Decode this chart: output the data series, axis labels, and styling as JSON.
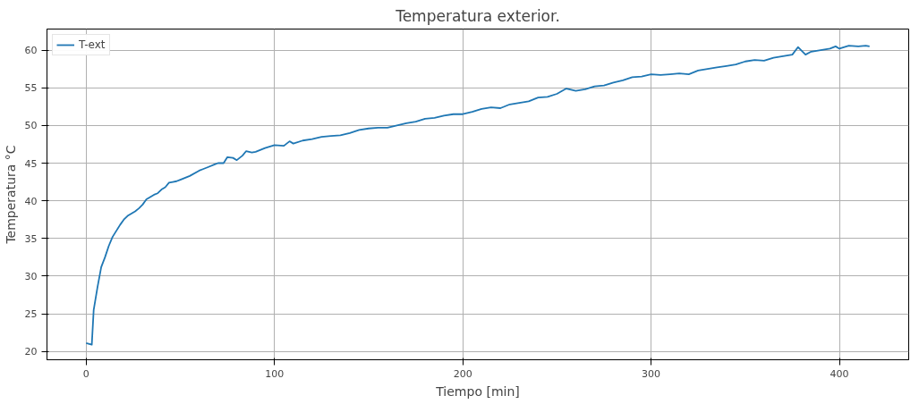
{
  "chart_data": {
    "type": "line",
    "title": "Temperatura exterior.",
    "xlabel": "Tiempo [min]",
    "ylabel": "Temperatura °C",
    "xlim": [
      -20.8,
      436.8
    ],
    "ylim": [
      18.9,
      62.8
    ],
    "xticks": [
      0,
      100,
      200,
      300,
      400
    ],
    "yticks": [
      20,
      25,
      30,
      35,
      40,
      45,
      50,
      55,
      60
    ],
    "grid": true,
    "legend": "top left",
    "series": [
      {
        "name": "T-ext",
        "color": "#1f77b4",
        "x": [
          0,
          3,
          4,
          6,
          8,
          10,
          12,
          14,
          16,
          18,
          20,
          22,
          24,
          26,
          28,
          30,
          32,
          34,
          36,
          38,
          40,
          42,
          44,
          46,
          48,
          50,
          55,
          60,
          62,
          65,
          68,
          70,
          73,
          75,
          78,
          80,
          83,
          85,
          88,
          90,
          95,
          100,
          105,
          108,
          110,
          115,
          120,
          125,
          130,
          135,
          140,
          145,
          150,
          155,
          160,
          165,
          170,
          175,
          180,
          185,
          190,
          195,
          200,
          205,
          210,
          215,
          220,
          225,
          230,
          235,
          240,
          245,
          250,
          255,
          260,
          265,
          270,
          275,
          280,
          285,
          290,
          295,
          300,
          305,
          310,
          315,
          320,
          325,
          330,
          335,
          340,
          345,
          350,
          355,
          360,
          365,
          370,
          375,
          378,
          382,
          385,
          390,
          395,
          398,
          400,
          405,
          410,
          414,
          416
        ],
        "values": [
          21.1,
          20.9,
          25.5,
          28.5,
          31.2,
          32.5,
          34,
          35.2,
          36,
          36.8,
          37.5,
          38,
          38.3,
          38.6,
          39,
          39.5,
          40.2,
          40.5,
          40.8,
          41,
          41.5,
          41.8,
          42.4,
          42.5,
          42.6,
          42.8,
          43.3,
          44,
          44.2,
          44.5,
          44.8,
          45,
          45,
          45.8,
          45.7,
          45.4,
          46,
          46.6,
          46.4,
          46.5,
          47,
          47.4,
          47.3,
          47.9,
          47.6,
          48,
          48.2,
          48.5,
          48.6,
          48.7,
          49,
          49.4,
          49.6,
          49.7,
          49.7,
          50,
          50.3,
          50.5,
          50.9,
          51,
          51.3,
          51.5,
          51.5,
          51.8,
          52.2,
          52.4,
          52.3,
          52.8,
          53,
          53.2,
          53.7,
          53.8,
          54.2,
          54.9,
          54.6,
          54.8,
          55.2,
          55.3,
          55.7,
          56,
          56.4,
          56.5,
          56.8,
          56.7,
          56.8,
          56.9,
          56.8,
          57.3,
          57.5,
          57.7,
          57.9,
          58.1,
          58.5,
          58.7,
          58.6,
          59,
          59.2,
          59.4,
          60.4,
          59.4,
          59.8,
          60,
          60.2,
          60.5,
          60.2,
          60.6,
          60.5,
          60.6,
          60.5
        ]
      }
    ]
  }
}
